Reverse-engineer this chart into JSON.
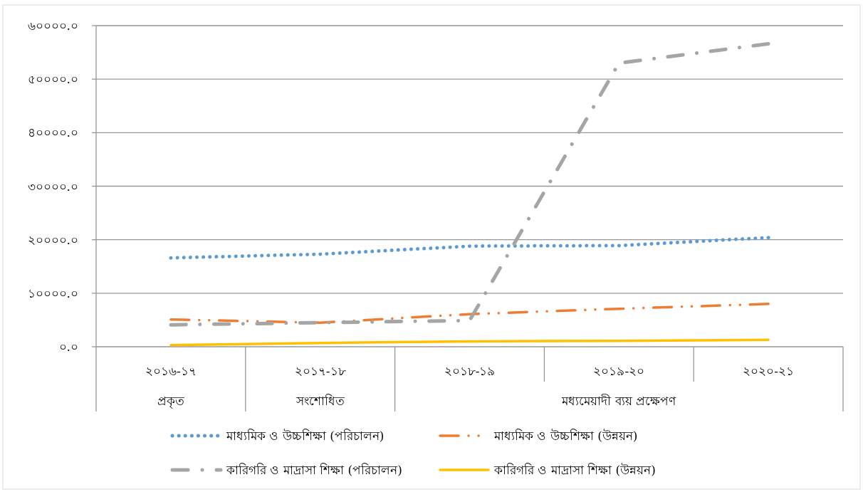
{
  "chart_data": {
    "type": "line",
    "categories": [
      "২০১৬-১৭",
      "২০১৭-১৮",
      "২০১৮-১৯",
      "২০১৯-২০",
      "২০২০-২১"
    ],
    "series": [
      {
        "name": "মাধ্যমিক ও উচ্চশিক্ষা (পরিচালন)",
        "color": "#5b9bd5",
        "line_style": "dotted",
        "values": [
          16600,
          17300,
          18800,
          18900,
          20400
        ]
      },
      {
        "name": "মাধ্যমিক ও উচ্চশিক্ষা (উন্নয়ন)",
        "color": "#ed7d31",
        "line_style": "longdashdotdot",
        "values": [
          5100,
          4500,
          6100,
          7100,
          8000
        ]
      },
      {
        "name": "কারিগরি ও মাদ্রাসা শিক্ষা (পরিচালন)",
        "color": "#a5a5a5",
        "line_style": "longdashdot",
        "values": [
          4100,
          4500,
          4900,
          53000,
          56600
        ]
      },
      {
        "name": "কারিগরি ও মাদ্রাসা শিক্ষা (উন্নয়ন)",
        "color": "#ffc000",
        "line_style": "solid",
        "values": [
          300,
          700,
          1000,
          1100,
          1300
        ]
      }
    ],
    "ylim": [
      0,
      60000
    ],
    "yticks": [
      {
        "value": 0,
        "label": "০.০"
      },
      {
        "value": 10000,
        "label": "১০০০০.০"
      },
      {
        "value": 20000,
        "label": "২০০০০.০"
      },
      {
        "value": 30000,
        "label": "৩০০০০.০"
      },
      {
        "value": 40000,
        "label": "৪০০০০.০"
      },
      {
        "value": 50000,
        "label": "৫০০০০.০"
      },
      {
        "value": 60000,
        "label": "৬০০০০.০"
      }
    ],
    "grid": "y",
    "legend": "bottom",
    "annotations": [
      "প্রকৃত",
      "সংশোধিত",
      "মধ্যমেয়াদী ব্যয় প্রক্ষেপণ"
    ]
  }
}
